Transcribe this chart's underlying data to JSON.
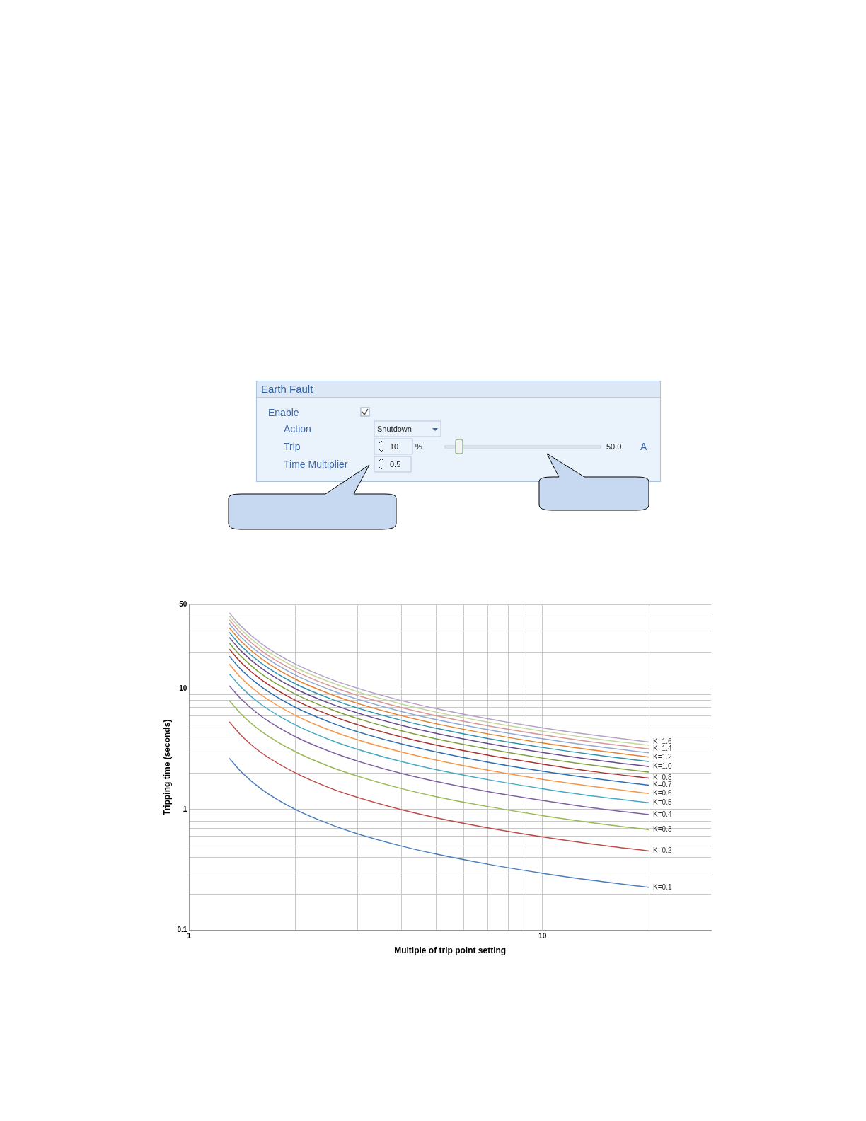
{
  "chart_data": [
    {
      "type": "other",
      "title": "Earth Fault",
      "annotations": [
        "Enable",
        "Action",
        "Shutdown",
        "Trip",
        "10",
        "%",
        "50.0",
        "A",
        "Time Multiplier",
        "0.5"
      ]
    },
    {
      "type": "line",
      "xlabel": "Multiple of trip point setting",
      "ylabel": "Tripping time (seconds)",
      "log": "xy",
      "grid": true,
      "legend": false,
      "marker": "none",
      "line_style": "solid",
      "x": [
        1.3,
        1.4,
        1.6,
        2,
        2.5,
        3,
        4,
        5,
        7,
        10,
        14,
        20
      ],
      "xlim": [
        1,
        30
      ],
      "xticks": [
        1,
        {
          "value": 2,
          "label": null
        },
        {
          "value": 3,
          "label": null
        },
        {
          "value": 4,
          "label": null
        },
        {
          "value": 5,
          "label": null
        },
        {
          "value": 6,
          "label": null
        },
        {
          "value": 7,
          "label": null
        },
        {
          "value": 8,
          "label": null
        },
        {
          "value": 9,
          "label": null
        },
        10,
        {
          "value": 20,
          "label": null
        }
      ],
      "ylim": [
        0.1,
        50
      ],
      "yticks": [
        0.1,
        {
          "value": 0.2,
          "label": null
        },
        {
          "value": 0.3,
          "label": null
        },
        {
          "value": 0.4,
          "label": null
        },
        {
          "value": 0.5,
          "label": null
        },
        {
          "value": 0.6,
          "label": null
        },
        {
          "value": 0.7,
          "label": null
        },
        {
          "value": 0.8,
          "label": null
        },
        {
          "value": 0.9,
          "label": null
        },
        1,
        {
          "value": 2,
          "label": null
        },
        {
          "value": 3,
          "label": null
        },
        {
          "value": 4,
          "label": null
        },
        {
          "value": 5,
          "label": null
        },
        {
          "value": 6,
          "label": null
        },
        {
          "value": 7,
          "label": null
        },
        {
          "value": 8,
          "label": null
        },
        {
          "value": 9,
          "label": null
        },
        10,
        {
          "value": 20,
          "label": null
        },
        {
          "value": 30,
          "label": null
        },
        {
          "value": 40,
          "label": null
        },
        50
      ],
      "series": [
        {
          "name": "K=0.1",
          "color": "#4a7ebb",
          "values": [
            2.66,
            2.07,
            1.48,
            1.0,
            0.757,
            0.63,
            0.498,
            0.428,
            0.353,
            0.297,
            0.258,
            0.227
          ]
        },
        {
          "name": "K=0.2",
          "color": "#be4b48",
          "values": [
            5.32,
            4.15,
            2.96,
            2.01,
            1.51,
            1.26,
            0.996,
            0.856,
            0.706,
            0.594,
            0.516,
            0.454
          ]
        },
        {
          "name": "K=0.3",
          "color": "#98b954",
          "values": [
            7.98,
            6.22,
            4.45,
            3.01,
            2.27,
            1.89,
            1.49,
            1.28,
            1.06,
            0.891,
            0.774,
            0.681
          ]
        },
        {
          "name": "K=0.4",
          "color": "#7d60a0",
          "values": [
            10.6,
            8.29,
            5.93,
            4.01,
            3.03,
            2.52,
            1.99,
            1.71,
            1.41,
            1.19,
            1.03,
            0.908
          ]
        },
        {
          "name": "K=0.5",
          "color": "#46aac5",
          "values": [
            13.3,
            10.4,
            7.41,
            5.02,
            3.79,
            3.15,
            2.49,
            2.14,
            1.77,
            1.49,
            1.29,
            1.14
          ]
        },
        {
          "name": "K=0.6",
          "color": "#f79646",
          "values": [
            16.0,
            12.4,
            8.89,
            6.02,
            4.54,
            3.78,
            2.99,
            2.57,
            2.12,
            1.78,
            1.55,
            1.36
          ]
        },
        {
          "name": "K=0.7",
          "color": "#2c6db0",
          "values": [
            18.6,
            14.5,
            10.4,
            7.02,
            5.3,
            4.41,
            3.49,
            3.0,
            2.47,
            2.08,
            1.81,
            1.59
          ]
        },
        {
          "name": "K=0.8",
          "color": "#a83230",
          "values": [
            21.3,
            16.6,
            11.9,
            8.02,
            6.06,
            5.04,
            3.98,
            3.42,
            2.82,
            2.38,
            2.06,
            1.82
          ]
        },
        {
          "color": "#7f9f3e",
          "values": [
            23.9,
            18.7,
            13.3,
            9.03,
            6.81,
            5.67,
            4.48,
            3.85,
            3.18,
            2.67,
            2.32,
            2.04
          ]
        },
        {
          "name": "K=1.0",
          "color": "#664a8a",
          "values": [
            26.6,
            20.7,
            14.8,
            10.0,
            7.57,
            6.3,
            4.98,
            4.28,
            3.53,
            2.97,
            2.58,
            2.27
          ]
        },
        {
          "color": "#2f93ad",
          "values": [
            29.3,
            22.8,
            16.3,
            11.0,
            8.33,
            6.93,
            5.48,
            4.71,
            3.88,
            3.27,
            2.84,
            2.5
          ]
        },
        {
          "name": "K=1.2",
          "color": "#e5802e",
          "values": [
            31.9,
            24.9,
            17.8,
            12.0,
            9.08,
            7.56,
            5.98,
            5.14,
            4.24,
            3.56,
            3.1,
            2.72
          ]
        },
        {
          "color": "#8fa9d4",
          "values": [
            34.6,
            26.9,
            19.3,
            13.0,
            9.84,
            8.19,
            6.47,
            5.56,
            4.59,
            3.86,
            3.35,
            2.95
          ]
        },
        {
          "name": "K=1.4",
          "color": "#d99694",
          "values": [
            37.2,
            29.0,
            20.7,
            14.0,
            10.6,
            8.82,
            6.97,
            5.99,
            4.94,
            4.16,
            3.61,
            3.18
          ]
        },
        {
          "color": "#c3d69b",
          "values": [
            39.9,
            31.1,
            22.2,
            15.0,
            11.4,
            9.45,
            7.47,
            6.42,
            5.3,
            4.46,
            3.87,
            3.41
          ]
        },
        {
          "name": "K=1.6",
          "color": "#b3a2c7",
          "values": [
            42.6,
            33.2,
            23.7,
            16.0,
            12.1,
            10.1,
            7.97,
            6.85,
            5.65,
            4.75,
            4.13,
            3.63
          ]
        }
      ]
    }
  ]
}
